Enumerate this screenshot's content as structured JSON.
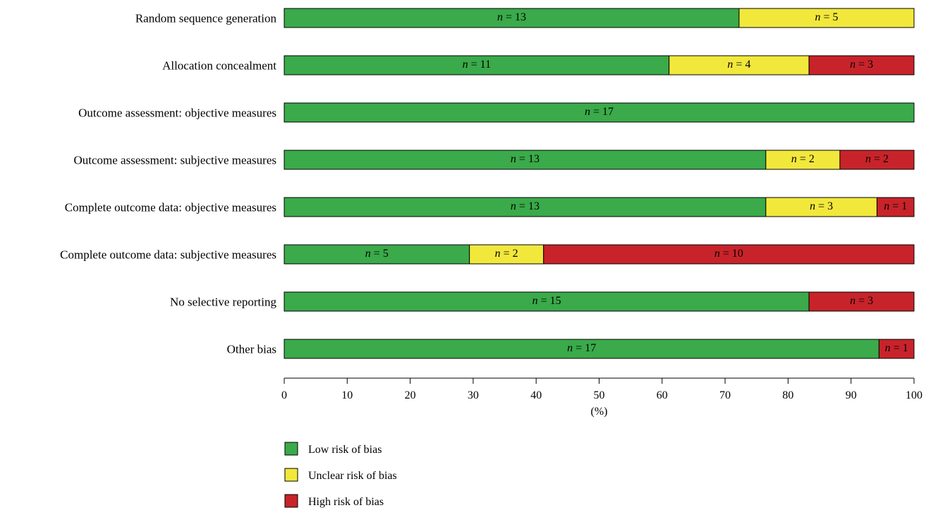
{
  "chart_data": {
    "type": "bar",
    "orientation": "horizontal",
    "stacked": true,
    "normalized_percent": true,
    "categories": [
      "Random sequence generation",
      "Allocation concealment",
      "Outcome assessment: objective measures",
      "Outcome assessment: subjective measures",
      "Complete outcome data: objective measures",
      "Complete outcome data: subjective measures",
      "No selective reporting",
      "Other bias"
    ],
    "series": [
      {
        "name": "Low risk of bias",
        "color": "#3aaa4a",
        "values": [
          13,
          11,
          17,
          13,
          13,
          5,
          15,
          17
        ]
      },
      {
        "name": "Unclear risk of bias",
        "color": "#f2e83c",
        "values": [
          5,
          4,
          0,
          2,
          3,
          2,
          0,
          0
        ]
      },
      {
        "name": "High risk of bias",
        "color": "#c8232a",
        "values": [
          0,
          3,
          0,
          2,
          1,
          10,
          3,
          1
        ]
      }
    ],
    "segment_label_prefix": "n = ",
    "xlabel": "(%)",
    "xlim": [
      0,
      100
    ],
    "xticks": [
      0,
      10,
      20,
      30,
      40,
      50,
      60,
      70,
      80,
      90,
      100
    ],
    "legend_position": "bottom"
  }
}
